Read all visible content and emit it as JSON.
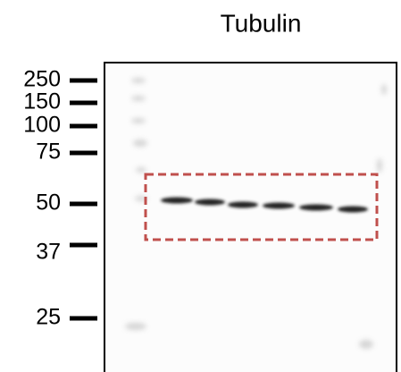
{
  "header": {
    "title": "Tubulin"
  },
  "markers": [
    {
      "label": "250"
    },
    {
      "label": "150"
    },
    {
      "label": "100"
    },
    {
      "label": "75"
    },
    {
      "label": "50"
    },
    {
      "label": "37"
    },
    {
      "label": "25"
    }
  ]
}
